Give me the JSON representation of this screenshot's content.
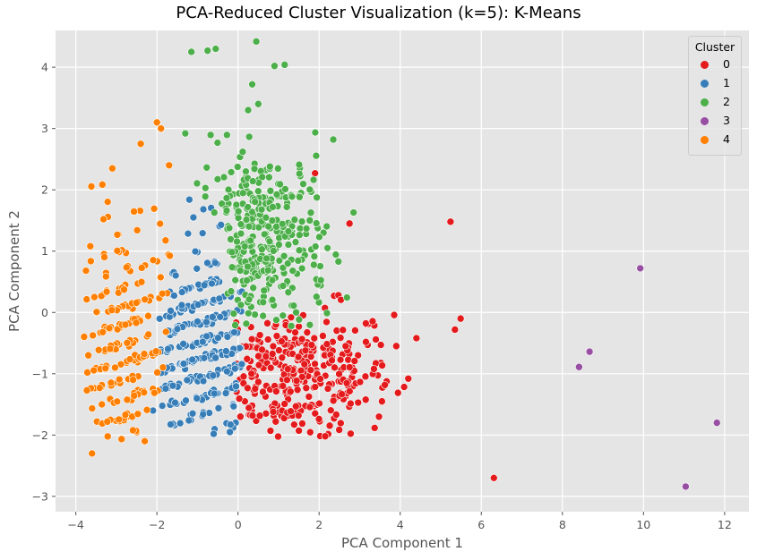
{
  "chart_data": {
    "type": "scatter",
    "title": "PCA-Reduced Cluster Visualization (k=5): K-Means",
    "xlabel": "PCA Component 1",
    "ylabel": "PCA Component 2",
    "xlim": [
      -4.5,
      12.6
    ],
    "ylim": [
      -3.25,
      4.6
    ],
    "xticks": [
      -4,
      -2,
      0,
      2,
      4,
      6,
      8,
      10,
      12
    ],
    "yticks": [
      -3,
      -2,
      -1,
      0,
      1,
      2,
      3,
      4
    ],
    "grid": true,
    "legend": {
      "title": "Cluster",
      "position": "upper right",
      "entries": [
        "0",
        "1",
        "2",
        "3",
        "4"
      ]
    },
    "series": [
      {
        "name": "0",
        "color": "#e41a1c",
        "center": [
          1.4,
          -1.0
        ],
        "spread": [
          1.2,
          0.55
        ],
        "count": 320,
        "notable_points": [
          [
            5.24,
            1.48
          ],
          [
            5.49,
            -0.1
          ],
          [
            5.35,
            -0.28
          ],
          [
            6.31,
            -2.7
          ],
          [
            2.15,
            -2.02
          ],
          [
            1.9,
            2.27
          ],
          [
            2.75,
            1.45
          ],
          [
            4.4,
            -0.42
          ],
          [
            4.2,
            -1.08
          ],
          [
            3.55,
            -1.45
          ],
          [
            0.8,
            -1.93
          ]
        ]
      },
      {
        "name": "1",
        "color": "#377eb8",
        "center": [
          -0.9,
          -0.5
        ],
        "spread": [
          0.75,
          0.9
        ],
        "count": 300,
        "notable_points": [
          [
            -1.2,
            1.84
          ],
          [
            -0.6,
            -1.98
          ],
          [
            -0.2,
            -1.95
          ],
          [
            -1.1,
            1.55
          ]
        ]
      },
      {
        "name": "2",
        "color": "#4daf4a",
        "center": [
          0.6,
          1.1
        ],
        "spread": [
          0.8,
          0.8
        ],
        "count": 320,
        "notable_points": [
          [
            -1.15,
            4.25
          ],
          [
            -0.75,
            4.27
          ],
          [
            -0.55,
            4.3
          ],
          [
            0.45,
            4.42
          ],
          [
            0.9,
            4.02
          ],
          [
            1.15,
            4.04
          ],
          [
            0.35,
            3.72
          ],
          [
            0.25,
            3.3
          ],
          [
            0.5,
            3.4
          ],
          [
            2.35,
            2.82
          ],
          [
            -1.3,
            2.92
          ],
          [
            2.85,
            1.63
          ]
        ]
      },
      {
        "name": "3",
        "color": "#984ea3",
        "points": [
          [
            9.92,
            0.72
          ],
          [
            8.67,
            -0.64
          ],
          [
            8.41,
            -0.89
          ],
          [
            11.81,
            -1.8
          ],
          [
            11.04,
            -2.84
          ]
        ]
      },
      {
        "name": "4",
        "color": "#ff7f00",
        "center": [
          -2.8,
          -0.3
        ],
        "spread": [
          0.55,
          1.2
        ],
        "count": 200,
        "notable_points": [
          [
            -2.0,
            3.1
          ],
          [
            -1.9,
            3.0
          ],
          [
            -2.4,
            2.75
          ],
          [
            -3.75,
            0.68
          ],
          [
            -3.6,
            -2.3
          ],
          [
            -2.3,
            -2.1
          ],
          [
            -3.1,
            2.35
          ],
          [
            -1.7,
            2.4
          ]
        ]
      }
    ]
  },
  "legend": {
    "title": "Cluster",
    "items": [
      {
        "label": "0"
      },
      {
        "label": "1"
      },
      {
        "label": "2"
      },
      {
        "label": "3"
      },
      {
        "label": "4"
      }
    ]
  }
}
